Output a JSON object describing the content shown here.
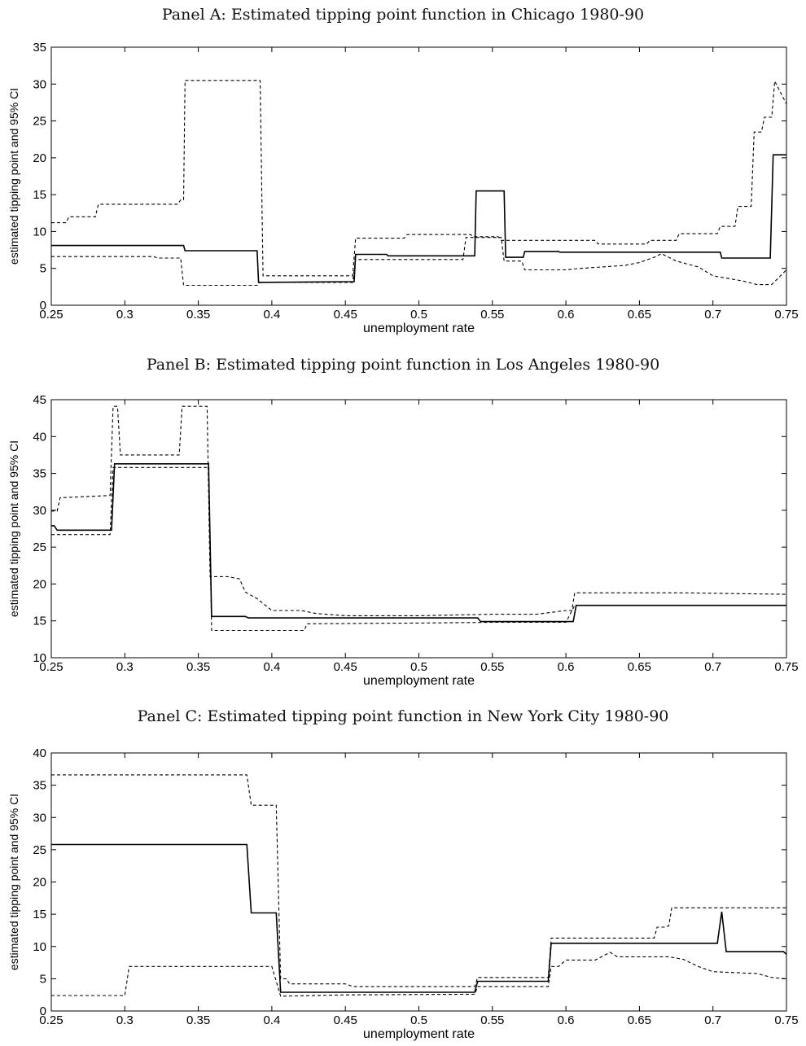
{
  "chart_data": [
    {
      "type": "line",
      "title": "Panel A: Estimated tipping point function in Chicago 1980-90",
      "xlabel": "unemployment rate",
      "ylabel": "estimated tipping point and 95% CI",
      "xlim": [
        0.25,
        0.75
      ],
      "ylim": [
        0,
        35
      ],
      "xticks": [
        "0.25",
        "0.3",
        "0.35",
        "0.4",
        "0.45",
        "0.5",
        "0.55",
        "0.6",
        "0.65",
        "0.7",
        "0.75"
      ],
      "yticks": [
        "0",
        "5",
        "10",
        "15",
        "20",
        "25",
        "30",
        "35"
      ],
      "series": [
        {
          "style": "solid",
          "x": [
            0.25,
            0.34,
            0.341,
            0.39,
            0.391,
            0.456,
            0.457,
            0.478,
            0.479,
            0.538,
            0.539,
            0.558,
            0.559,
            0.571,
            0.572,
            0.595,
            0.596,
            0.705,
            0.706,
            0.739,
            0.741,
            0.75
          ],
          "y": [
            8.1,
            8.1,
            7.4,
            7.4,
            3.1,
            3.2,
            6.9,
            6.9,
            6.7,
            6.7,
            15.5,
            15.5,
            6.5,
            6.5,
            7.3,
            7.3,
            7.2,
            7.2,
            6.4,
            6.4,
            20.4,
            20.4
          ]
        },
        {
          "style": "dashed",
          "x": [
            0.25,
            0.26,
            0.262,
            0.28,
            0.282,
            0.336,
            0.338,
            0.34,
            0.341,
            0.392,
            0.394,
            0.455,
            0.457,
            0.49,
            0.492,
            0.535,
            0.537,
            0.554,
            0.556,
            0.62,
            0.622,
            0.655,
            0.657,
            0.675,
            0.677,
            0.703,
            0.705,
            0.715,
            0.717,
            0.726,
            0.728,
            0.733,
            0.735,
            0.74,
            0.742,
            0.75
          ],
          "y": [
            11.2,
            11.2,
            12.0,
            12.0,
            13.7,
            13.7,
            14.3,
            14.3,
            30.5,
            30.5,
            4.0,
            4.0,
            9.1,
            9.1,
            9.6,
            9.6,
            9.3,
            9.3,
            8.8,
            8.8,
            8.3,
            8.3,
            8.8,
            8.8,
            9.7,
            9.7,
            10.7,
            10.7,
            13.4,
            13.4,
            23.5,
            23.5,
            25.5,
            25.5,
            30.4,
            27.3
          ]
        },
        {
          "style": "dashed",
          "x": [
            0.25,
            0.32,
            0.322,
            0.338,
            0.34,
            0.39,
            0.392,
            0.455,
            0.457,
            0.53,
            0.532,
            0.556,
            0.558,
            0.57,
            0.572,
            0.6,
            0.61,
            0.64,
            0.65,
            0.66,
            0.665,
            0.675,
            0.69,
            0.7,
            0.72,
            0.73,
            0.74,
            0.75
          ],
          "y": [
            6.6,
            6.6,
            6.4,
            6.4,
            2.7,
            2.7,
            3.1,
            3.1,
            6.2,
            6.2,
            9.2,
            9.2,
            6.0,
            6.0,
            4.8,
            4.8,
            5.0,
            5.4,
            5.8,
            6.5,
            7.0,
            6.0,
            5.2,
            4.0,
            3.3,
            2.8,
            2.8,
            4.8
          ]
        }
      ]
    },
    {
      "type": "line",
      "title": "Panel B: Estimated tipping point function in Los Angeles 1980-90",
      "xlabel": "unemployment rate",
      "ylabel": "estimated tipping point and 95% CI",
      "xlim": [
        0.25,
        0.75
      ],
      "ylim": [
        10,
        45
      ],
      "xticks": [
        "0.25",
        "0.3",
        "0.35",
        "0.4",
        "0.45",
        "0.5",
        "0.55",
        "0.6",
        "0.65",
        "0.7",
        "0.75"
      ],
      "yticks": [
        "10",
        "15",
        "20",
        "25",
        "30",
        "35",
        "40",
        "45"
      ],
      "series": [
        {
          "style": "solid",
          "x": [
            0.25,
            0.252,
            0.254,
            0.291,
            0.293,
            0.357,
            0.359,
            0.382,
            0.384,
            0.54,
            0.542,
            0.605,
            0.607,
            0.75
          ],
          "y": [
            27.9,
            27.9,
            27.3,
            27.3,
            36.3,
            36.3,
            15.6,
            15.6,
            15.4,
            15.4,
            14.9,
            14.9,
            17.1,
            17.1
          ]
        },
        {
          "style": "dashed",
          "x": [
            0.25,
            0.254,
            0.256,
            0.29,
            0.292,
            0.295,
            0.297,
            0.337,
            0.339,
            0.356,
            0.358,
            0.37,
            0.378,
            0.382,
            0.39,
            0.4,
            0.42,
            0.43,
            0.45,
            0.5,
            0.55,
            0.58,
            0.6,
            0.604,
            0.606,
            0.68,
            0.75
          ],
          "y": [
            29.9,
            29.9,
            31.7,
            32.0,
            44.1,
            44.1,
            37.5,
            37.5,
            44.1,
            44.1,
            21.0,
            21.0,
            20.7,
            18.9,
            18.0,
            16.4,
            16.4,
            16.0,
            15.7,
            15.7,
            15.9,
            15.9,
            16.4,
            16.4,
            18.8,
            18.8,
            18.6
          ]
        },
        {
          "style": "dashed",
          "x": [
            0.25,
            0.29,
            0.292,
            0.357,
            0.359,
            0.422,
            0.424,
            0.5,
            0.55,
            0.6,
            0.606,
            0.75
          ],
          "y": [
            26.7,
            26.7,
            35.8,
            35.8,
            13.7,
            13.7,
            14.6,
            14.7,
            14.8,
            14.8,
            17.1,
            17.1
          ]
        }
      ]
    },
    {
      "type": "line",
      "title": "Panel C: Estimated tipping point function in New York City 1980-90",
      "xlabel": "unemployment rate",
      "ylabel": "estimated tipping point and 95% CI",
      "xlim": [
        0.25,
        0.75
      ],
      "ylim": [
        0,
        40
      ],
      "xticks": [
        "0.25",
        "0.3",
        "0.35",
        "0.4",
        "0.45",
        "0.5",
        "0.55",
        "0.6",
        "0.65",
        "0.7",
        "0.75"
      ],
      "yticks": [
        "0",
        "5",
        "10",
        "15",
        "20",
        "25",
        "30",
        "35",
        "40"
      ],
      "series": [
        {
          "style": "solid",
          "x": [
            0.25,
            0.383,
            0.386,
            0.403,
            0.406,
            0.538,
            0.54,
            0.588,
            0.59,
            0.703,
            0.706,
            0.709,
            0.748,
            0.75
          ],
          "y": [
            25.8,
            25.8,
            15.2,
            15.2,
            2.9,
            2.9,
            4.6,
            4.6,
            10.5,
            10.5,
            15.4,
            9.2,
            9.2,
            8.8
          ]
        },
        {
          "style": "dashed",
          "x": [
            0.25,
            0.383,
            0.386,
            0.403,
            0.406,
            0.41,
            0.412,
            0.45,
            0.455,
            0.538,
            0.54,
            0.588,
            0.59,
            0.66,
            0.662,
            0.667,
            0.67,
            0.672,
            0.75
          ],
          "y": [
            36.6,
            36.6,
            31.9,
            31.9,
            5.0,
            5.0,
            4.2,
            4.2,
            3.8,
            3.8,
            5.2,
            5.2,
            11.3,
            11.3,
            13.0,
            13.0,
            13.2,
            16.0,
            16.0
          ]
        },
        {
          "style": "dashed",
          "x": [
            0.25,
            0.3,
            0.303,
            0.4,
            0.406,
            0.45,
            0.538,
            0.54,
            0.588,
            0.59,
            0.595,
            0.6,
            0.62,
            0.625,
            0.63,
            0.635,
            0.67,
            0.68,
            0.69,
            0.7,
            0.73,
            0.74,
            0.75
          ],
          "y": [
            2.4,
            2.4,
            6.9,
            6.9,
            2.3,
            2.5,
            2.6,
            3.8,
            3.8,
            6.9,
            6.9,
            7.9,
            7.9,
            8.5,
            9.1,
            8.4,
            8.4,
            8.0,
            6.9,
            6.1,
            5.8,
            5.2,
            5.0
          ]
        }
      ]
    }
  ]
}
